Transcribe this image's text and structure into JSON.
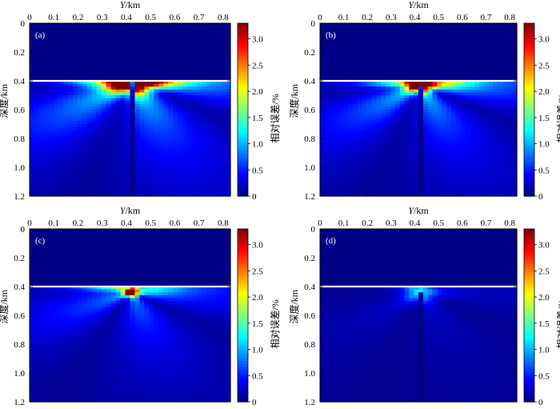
{
  "chart_data": [
    {
      "type": "heatmap",
      "panel_label": "(a)",
      "xlabel": "Y/km",
      "ylabel": "深度/km",
      "colorbar_label": "相对误差/%",
      "xlim": [
        0,
        0.83
      ],
      "ylim": [
        0,
        1.2
      ],
      "clim": [
        0,
        3.3
      ],
      "x_ticks": [
        "0",
        "0.1",
        "0.2",
        "0.3",
        "0.4",
        "0.5",
        "0.6",
        "0.7",
        "0.8"
      ],
      "y_ticks": [
        "0",
        "0.2",
        "0.4",
        "0.6",
        "0.8",
        "1.0",
        "1.2"
      ],
      "colorbar_ticks": [
        "0",
        "0.5",
        "1.0",
        "1.5",
        "2.0",
        "2.5",
        "3.0"
      ],
      "interface_depth": 0.4,
      "source": {
        "y": 0.42,
        "depth": 0.4
      },
      "error_peak": 3.3,
      "colormap": "jet"
    },
    {
      "type": "heatmap",
      "panel_label": "(b)",
      "xlabel": "Y/km",
      "ylabel": "深度/km",
      "colorbar_label": "相对误差/%",
      "xlim": [
        0,
        0.83
      ],
      "ylim": [
        0,
        1.2
      ],
      "clim": [
        0,
        3.3
      ],
      "x_ticks": [
        "0",
        "0.1",
        "0.2",
        "0.3",
        "0.4",
        "0.5",
        "0.6",
        "0.7",
        "0.8"
      ],
      "y_ticks": [
        "0",
        "0.2",
        "0.4",
        "0.6",
        "0.8",
        "1.0",
        "1.2"
      ],
      "colorbar_ticks": [
        "0",
        "0.5",
        "1.0",
        "1.5",
        "2.0",
        "2.5",
        "3.0"
      ],
      "interface_depth": 0.4,
      "source": {
        "y": 0.42,
        "depth": 0.43
      },
      "error_peak": 3.3,
      "colormap": "jet"
    },
    {
      "type": "heatmap",
      "panel_label": "(c)",
      "xlabel": "Y/km",
      "ylabel": "深度/km",
      "colorbar_label": "相对误差/%",
      "xlim": [
        0,
        0.83
      ],
      "ylim": [
        0,
        1.2
      ],
      "clim": [
        0,
        3.3
      ],
      "x_ticks": [
        "0",
        "0.1",
        "0.2",
        "0.3",
        "0.4",
        "0.5",
        "0.6",
        "0.7",
        "0.8"
      ],
      "y_ticks": [
        "0",
        "0.2",
        "0.4",
        "0.6",
        "0.8",
        "1.0",
        "1.2"
      ],
      "colorbar_ticks": [
        "0",
        "0.5",
        "1.0",
        "1.5",
        "2.0",
        "2.5",
        "3.0"
      ],
      "interface_depth": 0.4,
      "source": {
        "y": 0.42,
        "depth": 0.44
      },
      "error_peak": 3.0,
      "colormap": "jet"
    },
    {
      "type": "heatmap",
      "panel_label": "(d)",
      "xlabel": "Y/km",
      "ylabel": "深度/km",
      "colorbar_label": "相对误差/%",
      "xlim": [
        0,
        0.83
      ],
      "ylim": [
        0,
        1.2
      ],
      "clim": [
        0,
        3.3
      ],
      "x_ticks": [
        "0",
        "0.1",
        "0.2",
        "0.3",
        "0.4",
        "0.5",
        "0.6",
        "0.7",
        "0.8"
      ],
      "y_ticks": [
        "0",
        "0.2",
        "0.4",
        "0.6",
        "0.8",
        "1.0",
        "1.2"
      ],
      "colorbar_ticks": [
        "0",
        "0.5",
        "1.0",
        "1.5",
        "2.0",
        "2.5",
        "3.0"
      ],
      "interface_depth": 0.4,
      "source": {
        "y": 0.42,
        "depth": 0.44
      },
      "error_peak": 0.9,
      "colormap": "jet"
    }
  ]
}
